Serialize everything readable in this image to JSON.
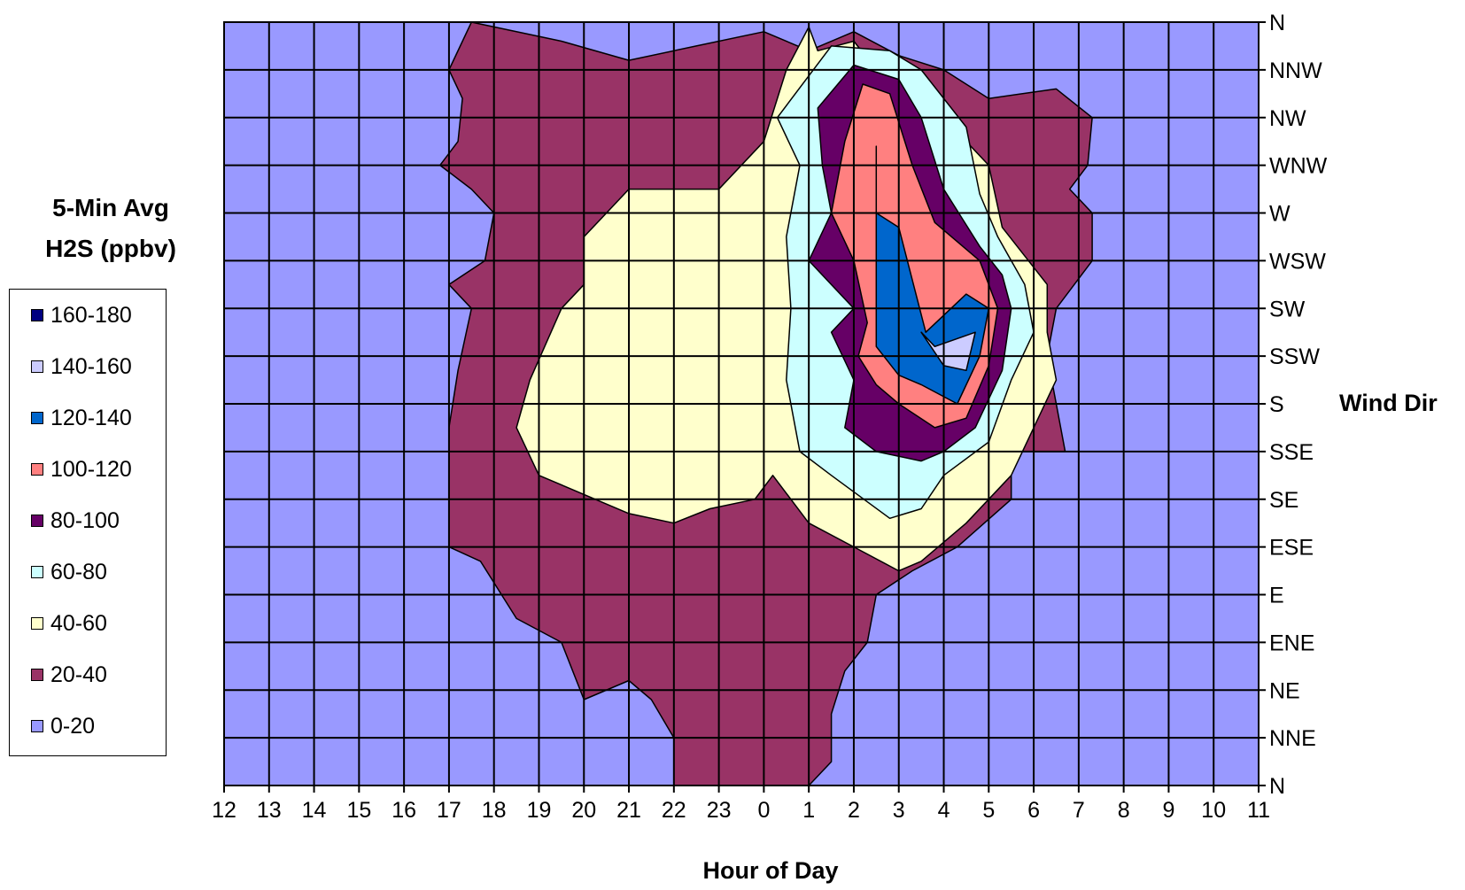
{
  "chart_data": {
    "type": "contour",
    "xlabel": "Hour of Day",
    "ylabel": "Wind Dir",
    "x_ticks": [
      "12",
      "13",
      "14",
      "15",
      "16",
      "17",
      "18",
      "19",
      "20",
      "21",
      "22",
      "23",
      "0",
      "1",
      "2",
      "3",
      "4",
      "5",
      "6",
      "7",
      "8",
      "9",
      "10",
      "11"
    ],
    "y_ticks": [
      "N",
      "NNW",
      "NW",
      "WNW",
      "W",
      "WSW",
      "SW",
      "SSW",
      "S",
      "SSE",
      "SE",
      "ESE",
      "E",
      "ENE",
      "NE",
      "NNE",
      "N"
    ],
    "legend_title": [
      "5-Min Avg",
      "H2S (ppbv)"
    ],
    "levels": [
      {
        "label": "160-180",
        "color": "#000080"
      },
      {
        "label": "140-160",
        "color": "#ccccff"
      },
      {
        "label": "120-140",
        "color": "#0066cc"
      },
      {
        "label": "100-120",
        "color": "#ff8080"
      },
      {
        "label": "80-100",
        "color": "#660066"
      },
      {
        "label": "60-80",
        "color": "#ccffff"
      },
      {
        "label": "40-60",
        "color": "#ffffcc"
      },
      {
        "label": "20-40",
        "color": "#993366"
      },
      {
        "label": "0-20",
        "color": "#9999ff"
      }
    ],
    "regions": {
      "20-40": [
        [
          5.5,
          0
        ],
        [
          7.5,
          0.4
        ],
        [
          9,
          0.8
        ],
        [
          10.5,
          0.5
        ],
        [
          12,
          0.2
        ],
        [
          13,
          0.6
        ],
        [
          14,
          0.2
        ],
        [
          15,
          0.7
        ],
        [
          16,
          1
        ],
        [
          17,
          1.6
        ],
        [
          18.5,
          1.4
        ],
        [
          19.3,
          2
        ],
        [
          19.2,
          3
        ],
        [
          18.8,
          3.5
        ],
        [
          19.3,
          4
        ],
        [
          19.3,
          5
        ],
        [
          18.5,
          6
        ],
        [
          18.3,
          7
        ],
        [
          18.5,
          8
        ],
        [
          18.7,
          9
        ],
        [
          17.5,
          9
        ],
        [
          17.5,
          10
        ],
        [
          16.3,
          11
        ],
        [
          15.3,
          11.5
        ],
        [
          14.5,
          12
        ],
        [
          14.3,
          13
        ],
        [
          13.8,
          13.6
        ],
        [
          13.5,
          14.5
        ],
        [
          13.5,
          15.5
        ],
        [
          13,
          16
        ],
        [
          10,
          16
        ],
        [
          10,
          15
        ],
        [
          9.5,
          14.2
        ],
        [
          9,
          13.8
        ],
        [
          8,
          14.2
        ],
        [
          7.5,
          13
        ],
        [
          6.5,
          12.5
        ],
        [
          5.7,
          11.3
        ],
        [
          5,
          11
        ],
        [
          5,
          10
        ],
        [
          5,
          8.5
        ],
        [
          5.2,
          7.3
        ],
        [
          5.5,
          6
        ],
        [
          5,
          5.5
        ],
        [
          5.8,
          5
        ],
        [
          6,
          4
        ],
        [
          5.5,
          3.5
        ],
        [
          4.8,
          3
        ],
        [
          5.2,
          2.5
        ],
        [
          5.3,
          1.6
        ],
        [
          5,
          1
        ]
      ],
      "40-60": [
        [
          13,
          0.1
        ],
        [
          13.2,
          0.6
        ],
        [
          14,
          0.4
        ],
        [
          14.5,
          1
        ],
        [
          16,
          2
        ],
        [
          17,
          3
        ],
        [
          17.3,
          4.3
        ],
        [
          18.3,
          5.5
        ],
        [
          18.3,
          6.5
        ],
        [
          18.5,
          7.5
        ],
        [
          18,
          8.5
        ],
        [
          17.5,
          9.5
        ],
        [
          16.5,
          10.5
        ],
        [
          15.5,
          11.3
        ],
        [
          15,
          11.5
        ],
        [
          14,
          11
        ],
        [
          13,
          10.5
        ],
        [
          12.2,
          9.5
        ],
        [
          11.8,
          10
        ],
        [
          10.8,
          10.2
        ],
        [
          10,
          10.5
        ],
        [
          9,
          10.3
        ],
        [
          7,
          9.5
        ],
        [
          6.5,
          8.5
        ],
        [
          6.8,
          7.5
        ],
        [
          7.5,
          6
        ],
        [
          8,
          5.5
        ],
        [
          8,
          4.5
        ],
        [
          8.5,
          4
        ],
        [
          9,
          3.5
        ],
        [
          11,
          3.5
        ],
        [
          12,
          2.5
        ],
        [
          12.5,
          1
        ]
      ],
      "60-80": [
        [
          13.5,
          0.5
        ],
        [
          14.8,
          0.6
        ],
        [
          15.5,
          1
        ],
        [
          16.5,
          2.2
        ],
        [
          16.8,
          3.6
        ],
        [
          17.2,
          4.5
        ],
        [
          17.8,
          5.5
        ],
        [
          18,
          6.5
        ],
        [
          17.5,
          7.5
        ],
        [
          17,
          8.8
        ],
        [
          16,
          9.5
        ],
        [
          15.5,
          10.2
        ],
        [
          14.8,
          10.4
        ],
        [
          13.5,
          9.5
        ],
        [
          12.8,
          9
        ],
        [
          12.5,
          7.5
        ],
        [
          12.6,
          6
        ],
        [
          12.5,
          4.5
        ],
        [
          12.8,
          3
        ],
        [
          12.3,
          2
        ]
      ],
      "80-100": [
        [
          14,
          0.9
        ],
        [
          15,
          1.2
        ],
        [
          15.5,
          2
        ],
        [
          16,
          3.5
        ],
        [
          16.8,
          4.7
        ],
        [
          17.3,
          5.3
        ],
        [
          17.5,
          6
        ],
        [
          17.3,
          7.3
        ],
        [
          16.7,
          8.5
        ],
        [
          16,
          9
        ],
        [
          15.5,
          9.2
        ],
        [
          14.5,
          9
        ],
        [
          13.8,
          8.5
        ],
        [
          14,
          7.5
        ],
        [
          13.5,
          6.5
        ],
        [
          14,
          6
        ],
        [
          13,
          5
        ],
        [
          13.5,
          4
        ],
        [
          13.3,
          3
        ],
        [
          13.2,
          1.8
        ]
      ],
      "100-120": [
        [
          14.2,
          1.3
        ],
        [
          14.8,
          1.5
        ],
        [
          15.3,
          3
        ],
        [
          15.8,
          4.2
        ],
        [
          16.8,
          5
        ],
        [
          17.2,
          6
        ],
        [
          17,
          7.2
        ],
        [
          16.5,
          8.3
        ],
        [
          15.8,
          8.5
        ],
        [
          15,
          8
        ],
        [
          14.5,
          7.6
        ],
        [
          14.1,
          7
        ],
        [
          14.3,
          6.3
        ],
        [
          14,
          5
        ],
        [
          13.5,
          4
        ],
        [
          13.8,
          2.5
        ]
      ],
      "120-140": [
        [
          14.5,
          2.6
        ],
        [
          14.5,
          4
        ],
        [
          15,
          4.3
        ],
        [
          15.6,
          6.5
        ],
        [
          16.5,
          5.7
        ],
        [
          17,
          6
        ],
        [
          16.8,
          7
        ],
        [
          16.3,
          8
        ],
        [
          15.5,
          7.6
        ],
        [
          15,
          7.4
        ],
        [
          14.5,
          6.8
        ]
      ],
      "140-160": [
        [
          15.5,
          6.5
        ],
        [
          16,
          7.2
        ],
        [
          16.5,
          7.3
        ],
        [
          16.7,
          6.5
        ],
        [
          15.8,
          6.8
        ]
      ]
    }
  }
}
